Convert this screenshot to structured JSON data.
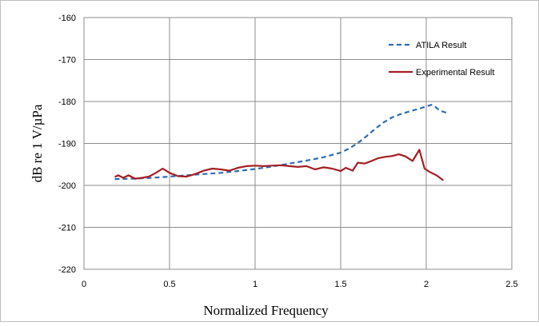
{
  "chart_data": {
    "type": "line",
    "title": "",
    "xlabel": "Normalized Frequency",
    "ylabel": "dB re 1 V/µPa",
    "xlim": [
      0,
      2.5
    ],
    "ylim": [
      -220,
      -160
    ],
    "xticks": [
      "0",
      "0.5",
      "1",
      "1.5",
      "2",
      "2.5"
    ],
    "yticks": [
      "-160",
      "-170",
      "-180",
      "-190",
      "-200",
      "-210",
      "-220"
    ],
    "grid": true,
    "legend_position": "top-right",
    "series": [
      {
        "name": "ATILA Result",
        "color": "#2e6db4",
        "dash": "dashed",
        "x": [
          0.18,
          0.3,
          0.4,
          0.5,
          0.6,
          0.7,
          0.8,
          0.9,
          1.0,
          1.1,
          1.2,
          1.3,
          1.4,
          1.5,
          1.55,
          1.6,
          1.65,
          1.7,
          1.75,
          1.8,
          1.85,
          1.9,
          1.95,
          2.0,
          2.03,
          2.05,
          2.08,
          2.12
        ],
        "y": [
          -198.5,
          -198.4,
          -198.2,
          -197.9,
          -197.6,
          -197.3,
          -197.0,
          -196.6,
          -196.1,
          -195.5,
          -194.8,
          -194.1,
          -193.3,
          -192.2,
          -191.2,
          -189.9,
          -188.3,
          -186.6,
          -185.0,
          -183.8,
          -183.0,
          -182.4,
          -181.8,
          -181.2,
          -180.8,
          -181.2,
          -182.2,
          -182.7
        ]
      },
      {
        "name": "Experimental Result",
        "color": "#a31f24",
        "dash": "solid",
        "x": [
          0.18,
          0.2,
          0.23,
          0.26,
          0.3,
          0.34,
          0.38,
          0.42,
          0.46,
          0.5,
          0.55,
          0.6,
          0.65,
          0.7,
          0.75,
          0.8,
          0.85,
          0.9,
          0.95,
          1.0,
          1.05,
          1.1,
          1.15,
          1.2,
          1.25,
          1.3,
          1.35,
          1.4,
          1.45,
          1.5,
          1.53,
          1.57,
          1.6,
          1.64,
          1.68,
          1.72,
          1.76,
          1.8,
          1.84,
          1.88,
          1.92,
          1.96,
          1.99,
          2.02,
          2.06,
          2.1
        ],
        "y": [
          -198.0,
          -197.6,
          -198.2,
          -197.6,
          -198.4,
          -198.2,
          -197.9,
          -197.0,
          -196.0,
          -197.0,
          -197.8,
          -197.9,
          -197.3,
          -196.5,
          -196.0,
          -196.2,
          -196.5,
          -195.8,
          -195.4,
          -195.3,
          -195.4,
          -195.3,
          -195.2,
          -195.4,
          -195.6,
          -195.4,
          -196.2,
          -195.7,
          -196.0,
          -196.6,
          -195.8,
          -196.5,
          -194.6,
          -194.8,
          -194.2,
          -193.5,
          -193.2,
          -193.0,
          -192.6,
          -193.1,
          -194.2,
          -191.5,
          -196.0,
          -196.8,
          -197.6,
          -198.8
        ]
      }
    ]
  }
}
